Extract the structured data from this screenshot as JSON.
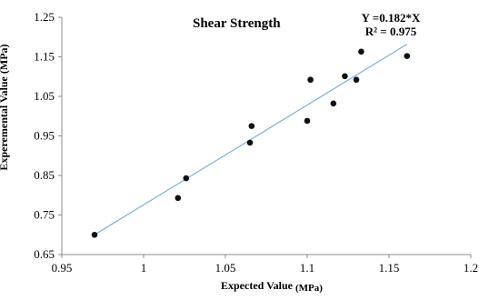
{
  "chart_data": {
    "type": "scatter",
    "title": "Shear Strength",
    "equation": "Y =0.182*X",
    "r_squared": "R² = 0.975",
    "xlabel": "Expected Value",
    "xlabel_unit": "(MPa)",
    "ylabel": "Experemental Value",
    "ylabel_unit": "(MPa)",
    "xlim": [
      0.95,
      1.2
    ],
    "ylim": [
      0.65,
      1.25
    ],
    "x_ticks": [
      "0.95",
      "1",
      "1.05",
      "1.1",
      "1.15",
      "1.2"
    ],
    "y_ticks": [
      "0.65",
      "0.75",
      "0.85",
      "0.95",
      "1.05",
      "1.15",
      "1.25"
    ],
    "grid": false,
    "series": [
      {
        "points": [
          {
            "x": 0.97,
            "y": 0.7
          },
          {
            "x": 1.021,
            "y": 0.793
          },
          {
            "x": 1.026,
            "y": 0.843
          },
          {
            "x": 1.065,
            "y": 0.933
          },
          {
            "x": 1.066,
            "y": 0.975
          },
          {
            "x": 1.1,
            "y": 0.988
          },
          {
            "x": 1.102,
            "y": 1.092
          },
          {
            "x": 1.116,
            "y": 1.032
          },
          {
            "x": 1.123,
            "y": 1.101
          },
          {
            "x": 1.13,
            "y": 1.092
          },
          {
            "x": 1.133,
            "y": 1.163
          },
          {
            "x": 1.161,
            "y": 1.152
          }
        ],
        "color": "#111111"
      }
    ],
    "trendline": {
      "x": [
        0.97,
        1.161
      ],
      "y": [
        0.7,
        1.182
      ],
      "color": "#7ab0db"
    }
  }
}
